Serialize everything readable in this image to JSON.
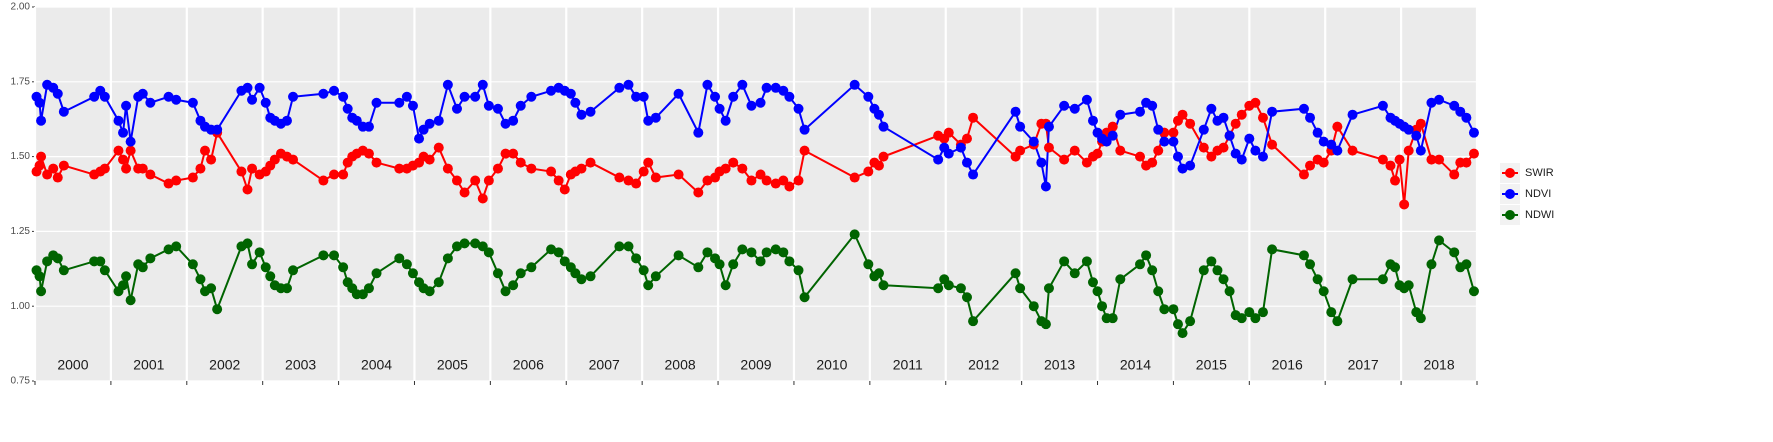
{
  "chart_data": {
    "type": "line",
    "legend": "right",
    "grid": true,
    "xlim": [
      2000,
      2019
    ],
    "ylim": [
      0.75,
      2.0
    ],
    "yticks": [
      0.75,
      {
        "value": 1.0,
        "label": "1.00"
      },
      1.25,
      {
        "value": 1.5,
        "label": "1.50"
      },
      1.75,
      {
        "value": 2.0,
        "label": "2.00"
      }
    ],
    "year_bounds": [
      2000,
      2001,
      2002,
      2003,
      2004,
      2005,
      2006,
      2007,
      2008,
      2009,
      2010,
      2011,
      2012,
      2013,
      2014,
      2015,
      2016,
      2017,
      2018,
      2019
    ],
    "year_labels": [
      "2000",
      "2001",
      "2002",
      "2003",
      "2004",
      "2005",
      "2006",
      "2007",
      "2008",
      "2009",
      "2010",
      "2011",
      "2012",
      "2013",
      "2014",
      "2015",
      "2016",
      "2017",
      "2018"
    ],
    "x": [
      2000.02,
      2000.06,
      2000.08,
      2000.16,
      2000.24,
      2000.3,
      2000.38,
      2000.78,
      2000.86,
      2000.92,
      2001.1,
      2001.16,
      2001.2,
      2001.26,
      2001.36,
      2001.42,
      2001.52,
      2001.76,
      2001.86,
      2002.08,
      2002.18,
      2002.24,
      2002.32,
      2002.4,
      2002.72,
      2002.8,
      2002.86,
      2002.96,
      2003.04,
      2003.1,
      2003.16,
      2003.24,
      2003.32,
      2003.4,
      2003.8,
      2003.94,
      2004.06,
      2004.12,
      2004.18,
      2004.24,
      2004.32,
      2004.4,
      2004.5,
      2004.8,
      2004.9,
      2004.98,
      2005.06,
      2005.12,
      2005.2,
      2005.32,
      2005.44,
      2005.56,
      2005.66,
      2005.8,
      2005.9,
      2005.98,
      2006.1,
      2006.2,
      2006.3,
      2006.4,
      2006.54,
      2006.8,
      2006.9,
      2006.98,
      2007.06,
      2007.12,
      2007.2,
      2007.32,
      2007.7,
      2007.82,
      2007.92,
      2008.02,
      2008.08,
      2008.18,
      2008.48,
      2008.74,
      2008.86,
      2008.96,
      2009.02,
      2009.1,
      2009.2,
      2009.32,
      2009.44,
      2009.56,
      2009.64,
      2009.76,
      2009.86,
      2009.94,
      2010.06,
      2010.14,
      2010.8,
      2010.98,
      2011.06,
      2011.12,
      2011.18,
      2011.9,
      2011.98,
      2012.04,
      2012.2,
      2012.28,
      2012.36,
      2012.92,
      2012.98,
      2013.16,
      2013.26,
      2013.32,
      2013.36,
      2013.56,
      2013.7,
      2013.86,
      2013.94,
      2014.0,
      2014.06,
      2014.12,
      2014.2,
      2014.3,
      2014.56,
      2014.64,
      2014.72,
      2014.8,
      2014.88,
      2015.0,
      2015.06,
      2015.12,
      2015.22,
      2015.4,
      2015.5,
      2015.58,
      2015.66,
      2015.74,
      2015.82,
      2015.9,
      2016.0,
      2016.08,
      2016.18,
      2016.3,
      2016.72,
      2016.8,
      2016.9,
      2016.98,
      2017.08,
      2017.16,
      2017.36,
      2017.76,
      2017.86,
      2017.92,
      2017.98,
      2018.04,
      2018.1,
      2018.2,
      2018.26,
      2018.4,
      2018.5,
      2018.7,
      2018.78,
      2018.86,
      2018.96
    ],
    "series": [
      {
        "name": "SWIR",
        "color": "#ff0000",
        "values": [
          1.45,
          1.47,
          1.5,
          1.44,
          1.46,
          1.43,
          1.47,
          1.44,
          1.45,
          1.46,
          1.52,
          1.49,
          1.46,
          1.52,
          1.46,
          1.46,
          1.44,
          1.41,
          1.42,
          1.43,
          1.46,
          1.52,
          1.49,
          1.58,
          1.45,
          1.39,
          1.46,
          1.44,
          1.45,
          1.47,
          1.49,
          1.51,
          1.5,
          1.49,
          1.42,
          1.44,
          1.44,
          1.48,
          1.5,
          1.51,
          1.52,
          1.51,
          1.48,
          1.46,
          1.46,
          1.47,
          1.48,
          1.5,
          1.49,
          1.53,
          1.46,
          1.42,
          1.38,
          1.42,
          1.36,
          1.42,
          1.46,
          1.51,
          1.51,
          1.48,
          1.46,
          1.45,
          1.42,
          1.39,
          1.44,
          1.45,
          1.46,
          1.48,
          1.43,
          1.42,
          1.41,
          1.45,
          1.48,
          1.43,
          1.44,
          1.38,
          1.42,
          1.43,
          1.45,
          1.46,
          1.48,
          1.46,
          1.42,
          1.44,
          1.42,
          1.41,
          1.42,
          1.4,
          1.42,
          1.52,
          1.43,
          1.45,
          1.48,
          1.47,
          1.5,
          1.57,
          1.56,
          1.58,
          1.54,
          1.56,
          1.63,
          1.5,
          1.52,
          1.54,
          1.61,
          1.61,
          1.53,
          1.49,
          1.52,
          1.48,
          1.5,
          1.51,
          1.55,
          1.58,
          1.6,
          1.52,
          1.5,
          1.47,
          1.48,
          1.52,
          1.58,
          1.58,
          1.62,
          1.64,
          1.61,
          1.53,
          1.5,
          1.52,
          1.53,
          1.57,
          1.61,
          1.64,
          1.67,
          1.68,
          1.63,
          1.54,
          1.44,
          1.47,
          1.49,
          1.48,
          1.52,
          1.6,
          1.52,
          1.49,
          1.47,
          1.42,
          1.49,
          1.34,
          1.52,
          1.59,
          1.61,
          1.49,
          1.49,
          1.44,
          1.48,
          1.48,
          1.51
        ]
      },
      {
        "name": "NDVI",
        "color": "#0000ff",
        "values": [
          1.7,
          1.68,
          1.62,
          1.74,
          1.73,
          1.71,
          1.65,
          1.7,
          1.72,
          1.7,
          1.62,
          1.58,
          1.67,
          1.55,
          1.7,
          1.71,
          1.68,
          1.7,
          1.69,
          1.68,
          1.62,
          1.6,
          1.59,
          1.59,
          1.72,
          1.73,
          1.69,
          1.73,
          1.68,
          1.63,
          1.62,
          1.61,
          1.62,
          1.7,
          1.71,
          1.72,
          1.7,
          1.66,
          1.63,
          1.62,
          1.6,
          1.6,
          1.68,
          1.68,
          1.7,
          1.67,
          1.56,
          1.59,
          1.61,
          1.62,
          1.74,
          1.66,
          1.7,
          1.7,
          1.74,
          1.67,
          1.66,
          1.61,
          1.62,
          1.67,
          1.7,
          1.72,
          1.73,
          1.72,
          1.71,
          1.68,
          1.64,
          1.65,
          1.73,
          1.74,
          1.7,
          1.7,
          1.62,
          1.63,
          1.71,
          1.58,
          1.74,
          1.7,
          1.66,
          1.62,
          1.7,
          1.74,
          1.67,
          1.68,
          1.73,
          1.73,
          1.72,
          1.7,
          1.66,
          1.59,
          1.74,
          1.7,
          1.66,
          1.64,
          1.6,
          1.49,
          1.53,
          1.51,
          1.53,
          1.48,
          1.44,
          1.65,
          1.6,
          1.55,
          1.48,
          1.4,
          1.6,
          1.67,
          1.66,
          1.69,
          1.62,
          1.58,
          1.56,
          1.55,
          1.57,
          1.64,
          1.65,
          1.68,
          1.67,
          1.59,
          1.55,
          1.55,
          1.5,
          1.46,
          1.47,
          1.59,
          1.66,
          1.62,
          1.63,
          1.57,
          1.51,
          1.49,
          1.56,
          1.52,
          1.5,
          1.65,
          1.66,
          1.63,
          1.58,
          1.55,
          1.54,
          1.52,
          1.64,
          1.67,
          1.63,
          1.62,
          1.61,
          1.6,
          1.59,
          1.57,
          1.52,
          1.68,
          1.69,
          1.67,
          1.65,
          1.63,
          1.58
        ]
      },
      {
        "name": "NDWI",
        "color": "#006400",
        "values": [
          1.12,
          1.1,
          1.05,
          1.15,
          1.17,
          1.16,
          1.12,
          1.15,
          1.15,
          1.12,
          1.05,
          1.07,
          1.1,
          1.02,
          1.14,
          1.13,
          1.16,
          1.19,
          1.2,
          1.14,
          1.09,
          1.05,
          1.06,
          0.99,
          1.2,
          1.21,
          1.14,
          1.18,
          1.13,
          1.1,
          1.07,
          1.06,
          1.06,
          1.12,
          1.17,
          1.17,
          1.13,
          1.08,
          1.06,
          1.04,
          1.04,
          1.06,
          1.11,
          1.16,
          1.14,
          1.11,
          1.08,
          1.06,
          1.05,
          1.08,
          1.16,
          1.2,
          1.21,
          1.21,
          1.2,
          1.18,
          1.11,
          1.05,
          1.07,
          1.11,
          1.13,
          1.19,
          1.18,
          1.15,
          1.13,
          1.11,
          1.09,
          1.1,
          1.2,
          1.2,
          1.16,
          1.12,
          1.07,
          1.1,
          1.17,
          1.13,
          1.18,
          1.16,
          1.14,
          1.07,
          1.14,
          1.19,
          1.18,
          1.15,
          1.18,
          1.19,
          1.18,
          1.15,
          1.12,
          1.03,
          1.24,
          1.14,
          1.1,
          1.11,
          1.07,
          1.06,
          1.09,
          1.07,
          1.06,
          1.03,
          0.95,
          1.11,
          1.06,
          1.0,
          0.95,
          0.94,
          1.06,
          1.15,
          1.11,
          1.15,
          1.08,
          1.05,
          1.0,
          0.96,
          0.96,
          1.09,
          1.14,
          1.17,
          1.12,
          1.05,
          0.99,
          0.99,
          0.94,
          0.91,
          0.95,
          1.12,
          1.15,
          1.12,
          1.09,
          1.05,
          0.97,
          0.96,
          0.98,
          0.96,
          0.98,
          1.19,
          1.17,
          1.14,
          1.09,
          1.05,
          0.98,
          0.95,
          1.09,
          1.09,
          1.14,
          1.13,
          1.07,
          1.06,
          1.07,
          0.98,
          0.96,
          1.14,
          1.22,
          1.18,
          1.13,
          1.14,
          1.05
        ]
      }
    ]
  }
}
